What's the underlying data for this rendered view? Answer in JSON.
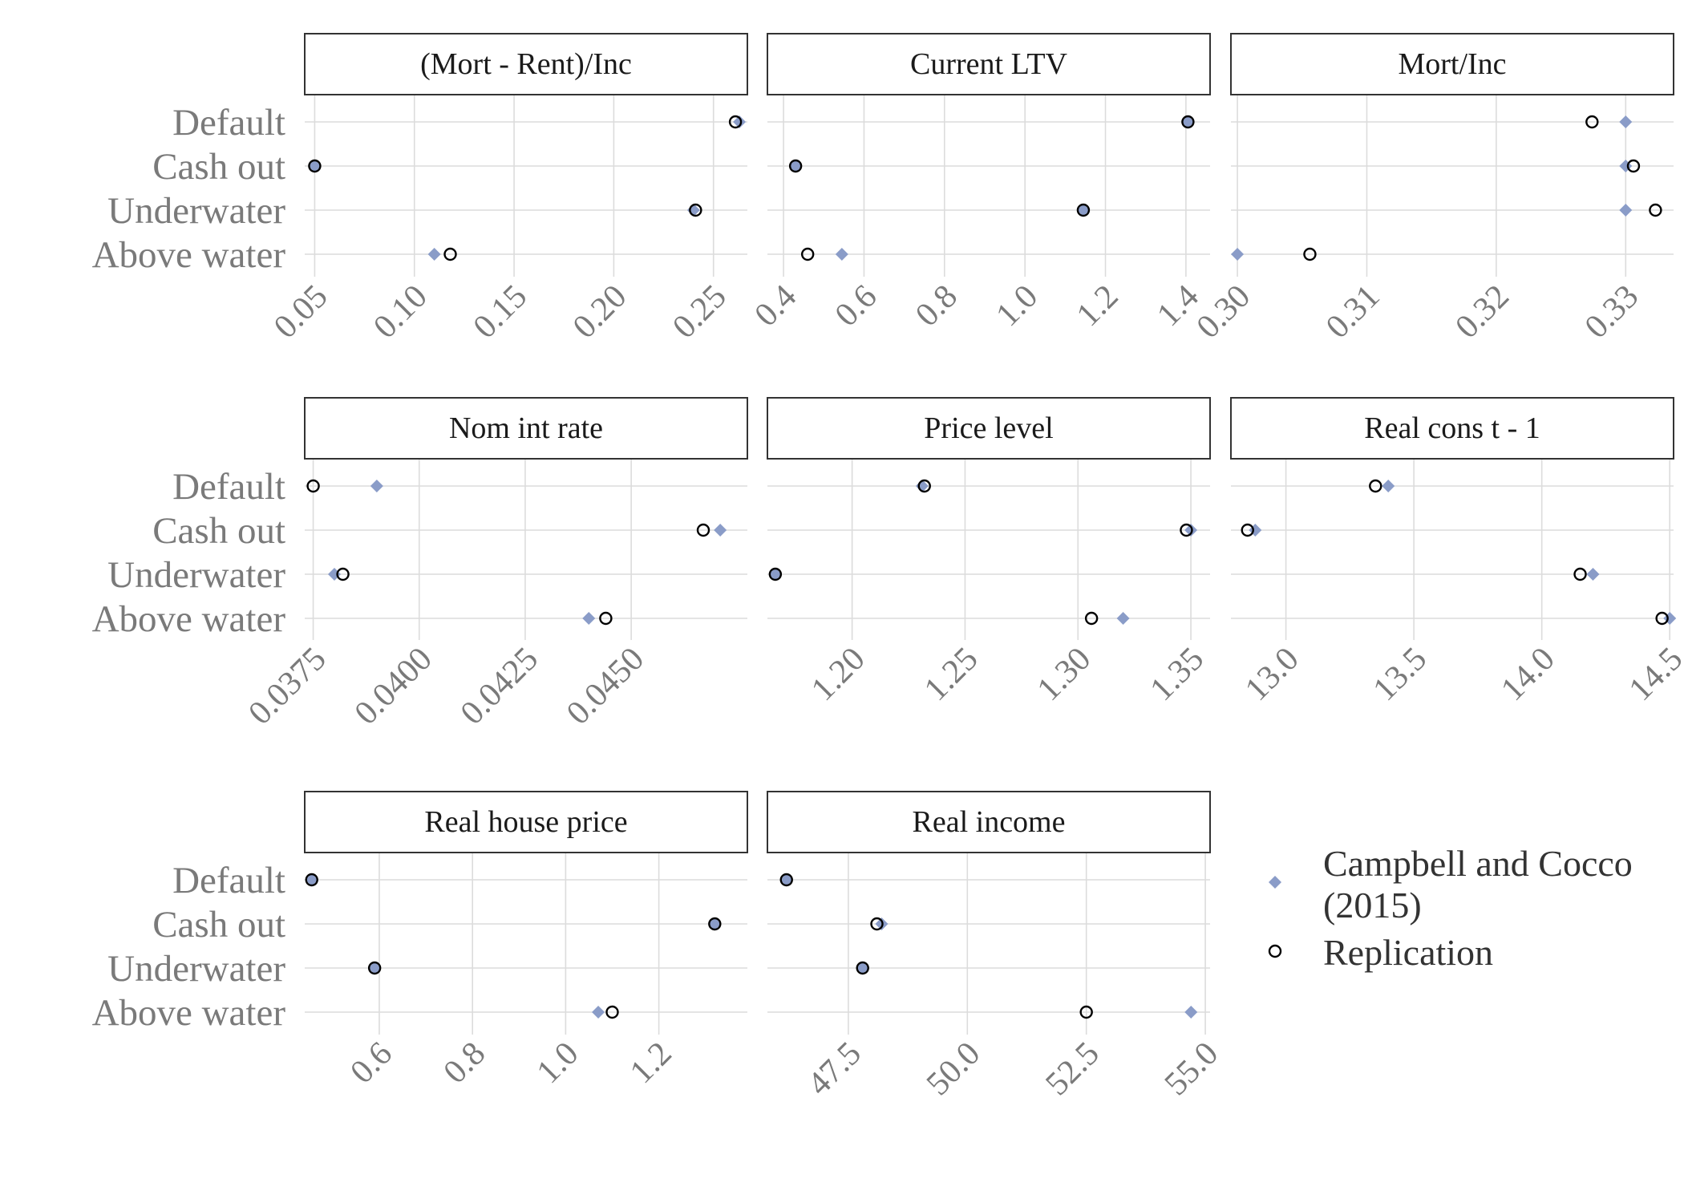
{
  "chart_data": {
    "type": "scatter",
    "categories": [
      "Default",
      "Cash out",
      "Underwater",
      "Above water"
    ],
    "legend": {
      "position": "right",
      "entries": [
        {
          "key": "cc",
          "label_lines": [
            "Campbell and Cocco",
            "(2015)"
          ],
          "marker": "diamond"
        },
        {
          "key": "rep",
          "label_lines": [
            "Replication"
          ],
          "marker": "open-circle"
        }
      ]
    },
    "colors": {
      "campbell_cocco": "#8a9cc8",
      "replication_stroke": "#000000",
      "grid": "#dcdcdc",
      "strip_border": "#333333"
    },
    "grid": true,
    "panels": [
      {
        "title": "(Mort - Rent)/Inc",
        "xlim": [
          0.045,
          0.267
        ],
        "ticks": [
          0.05,
          0.1,
          0.15,
          0.2,
          0.25
        ],
        "tick_labels": [
          "0.05",
          "0.10",
          "0.15",
          "0.20",
          "0.25"
        ],
        "series": {
          "Campbell and Cocco (2015)": [
            0.263,
            0.05,
            0.24,
            0.11
          ],
          "Replication": [
            0.261,
            0.05,
            0.241,
            0.118
          ]
        }
      },
      {
        "title": "Current LTV",
        "xlim": [
          0.36,
          1.46
        ],
        "ticks": [
          0.4,
          0.6,
          0.8,
          1.0,
          1.2,
          1.4
        ],
        "tick_labels": [
          "0.4",
          "0.6",
          "0.8",
          "1.0",
          "1.2",
          "1.4"
        ],
        "series": {
          "Campbell and Cocco (2015)": [
            1.405,
            0.43,
            1.145,
            0.545
          ],
          "Replication": [
            1.405,
            0.43,
            1.145,
            0.46
          ]
        }
      },
      {
        "title": "Mort/Inc",
        "xlim": [
          0.2995,
          0.3337
        ],
        "ticks": [
          0.3,
          0.31,
          0.32,
          0.33
        ],
        "tick_labels": [
          "0.30",
          "0.31",
          "0.32",
          "0.33"
        ],
        "series": {
          "Campbell and Cocco (2015)": [
            0.33,
            0.33,
            0.33,
            0.3
          ],
          "Replication": [
            0.3274,
            0.3306,
            0.3323,
            0.3056
          ]
        }
      },
      {
        "title": "Nom int rate",
        "xlim": [
          0.0373,
          0.04774
        ],
        "ticks": [
          0.0375,
          0.04,
          0.0425,
          0.045
        ],
        "tick_labels": [
          "0.0375",
          "0.0400",
          "0.0425",
          "0.0450"
        ],
        "series": {
          "Campbell and Cocco (2015)": [
            0.039,
            0.0471,
            0.038,
            0.044
          ],
          "Replication": [
            0.0375,
            0.0467,
            0.0382,
            0.0444
          ]
        }
      },
      {
        "title": "Price level",
        "xlim": [
          1.1625,
          1.3585
        ],
        "ticks": [
          1.2,
          1.25,
          1.3,
          1.35
        ],
        "tick_labels": [
          "1.20",
          "1.25",
          "1.30",
          "1.35"
        ],
        "series": {
          "Campbell and Cocco (2015)": [
            1.231,
            1.35,
            1.166,
            1.32
          ],
          "Replication": [
            1.232,
            1.348,
            1.166,
            1.306
          ]
        }
      },
      {
        "title": "Real cons t - 1",
        "xlim": [
          12.785,
          14.515
        ],
        "ticks": [
          13.0,
          13.5,
          14.0,
          14.5
        ],
        "tick_labels": [
          "13.0",
          "13.5",
          "14.0",
          "14.5"
        ],
        "series": {
          "Campbell and Cocco (2015)": [
            13.4,
            12.88,
            14.2,
            14.5
          ],
          "Replication": [
            13.35,
            12.85,
            14.15,
            14.47
          ]
        }
      },
      {
        "title": "Real house price",
        "xlim": [
          0.44,
          1.39
        ],
        "ticks": [
          0.6,
          0.8,
          1.0,
          1.2
        ],
        "tick_labels": [
          "0.6",
          "0.8",
          "1.0",
          "1.2"
        ],
        "series": {
          "Campbell and Cocco (2015)": [
            0.455,
            1.32,
            0.59,
            1.07
          ],
          "Replication": [
            0.455,
            1.32,
            0.59,
            1.1
          ]
        }
      },
      {
        "title": "Real income",
        "xlim": [
          45.8,
          55.1
        ],
        "ticks": [
          47.5,
          50.0,
          52.5,
          55.0
        ],
        "tick_labels": [
          "47.5",
          "50.0",
          "52.5",
          "55.0"
        ],
        "series": {
          "Campbell and Cocco (2015)": [
            46.2,
            48.2,
            47.8,
            54.7
          ],
          "Replication": [
            46.2,
            48.1,
            47.8,
            52.5
          ]
        }
      }
    ]
  }
}
